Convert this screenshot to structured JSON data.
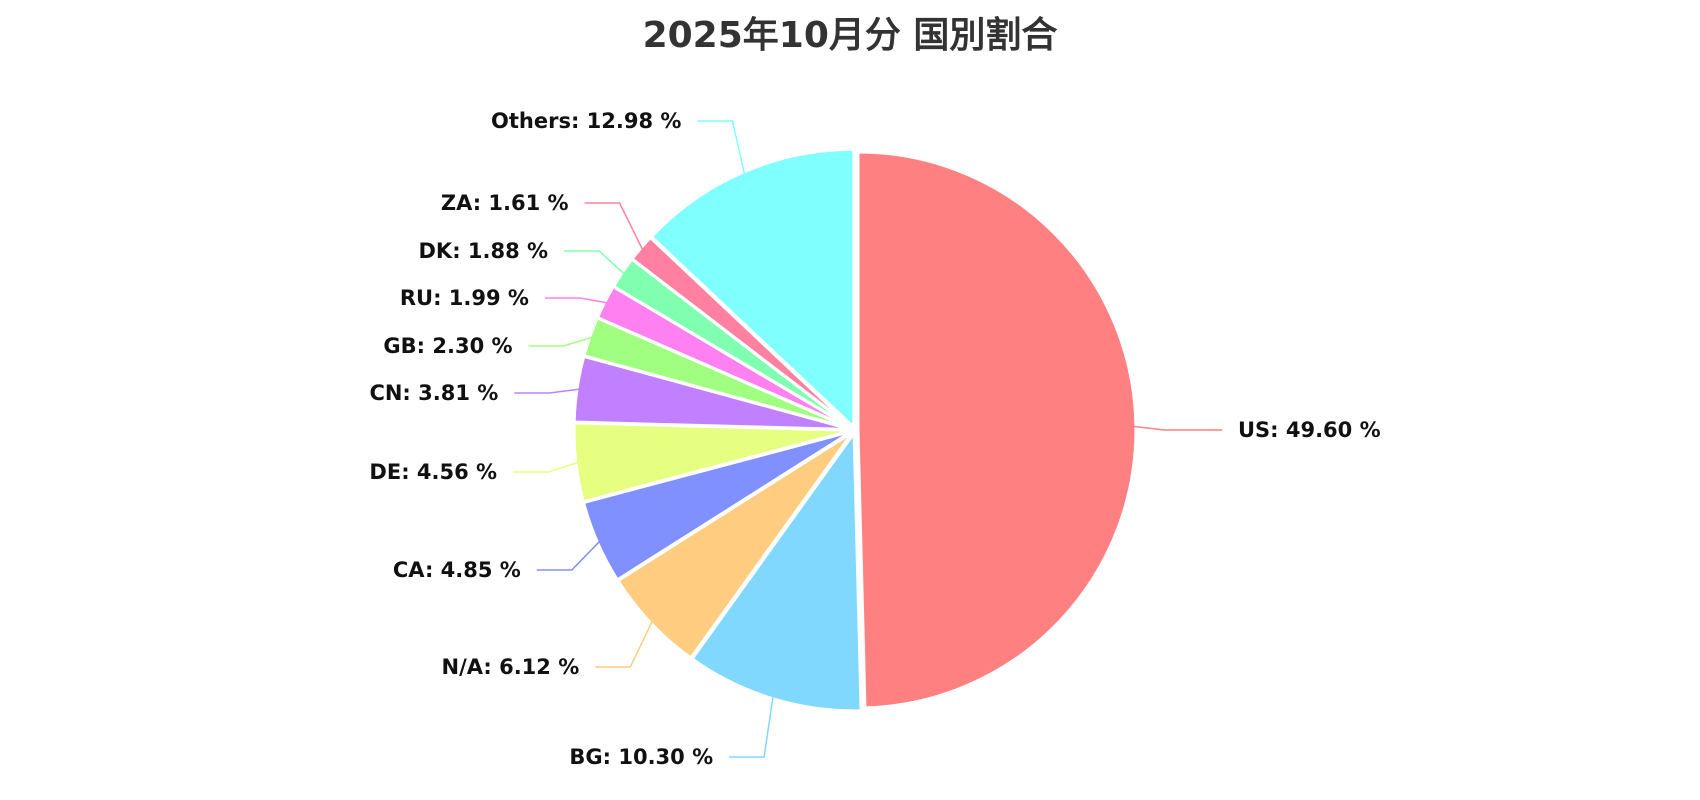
{
  "chart_data": {
    "type": "pie",
    "title": "2025年10月分 国別割合",
    "unit": "%",
    "slices": [
      {
        "label": "US",
        "value": 49.6,
        "color": "#ff8080"
      },
      {
        "label": "BG",
        "value": 10.3,
        "color": "#80d8ff"
      },
      {
        "label": "N/A",
        "value": 6.12,
        "color": "#ffcc80"
      },
      {
        "label": "CA",
        "value": 4.85,
        "color": "#8090ff"
      },
      {
        "label": "DE",
        "value": 4.56,
        "color": "#e6ff80"
      },
      {
        "label": "CN",
        "value": 3.81,
        "color": "#c080ff"
      },
      {
        "label": "GB",
        "value": 2.3,
        "color": "#a0ff80"
      },
      {
        "label": "RU",
        "value": 1.99,
        "color": "#ff80f0"
      },
      {
        "label": "DK",
        "value": 1.88,
        "color": "#80ffb0"
      },
      {
        "label": "ZA",
        "value": 1.61,
        "color": "#ff80a0"
      },
      {
        "label": "Others",
        "value": 12.98,
        "color": "#80ffff"
      }
    ]
  }
}
